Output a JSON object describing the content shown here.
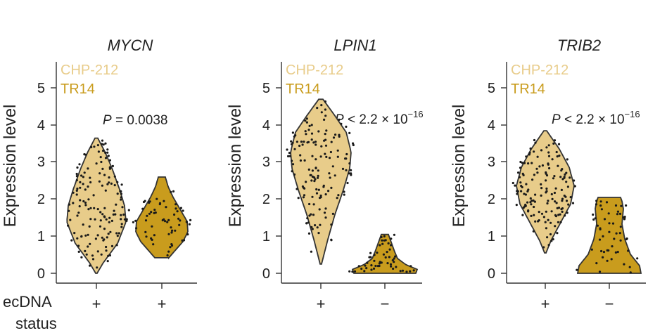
{
  "figure": {
    "x_axis_label_line1": "ecDNA",
    "x_axis_label_line2": "status"
  },
  "colors": {
    "CHP-212": "#e8cc8a",
    "TR14": "#c99c1d",
    "axis": "#333333",
    "dots": "#1a1a1a"
  },
  "chart_data": [
    {
      "type": "violin",
      "title": "MYCN",
      "ylabel": "Expression level",
      "ylim": [
        0,
        5.5
      ],
      "yticks": [
        0,
        1,
        2,
        3,
        4,
        5
      ],
      "legend": [
        "CHP-212",
        "TR14"
      ],
      "p_value": {
        "prefix": "P",
        "text": " = 0.0038",
        "exponent": ""
      },
      "groups": [
        {
          "name": "CHP-212",
          "ecdna_status": "+",
          "color": "#e8cc8a",
          "ymin": 0.0,
          "ymax": 3.65,
          "n_points": 150
        },
        {
          "name": "TR14",
          "ecdna_status": "+",
          "color": "#c99c1d",
          "ymin": 0.42,
          "ymax": 2.6,
          "n_points": 60
        }
      ]
    },
    {
      "type": "violin",
      "title": "LPIN1",
      "ylabel": "Expression level",
      "ylim": [
        0,
        5.5
      ],
      "yticks": [
        0,
        1,
        2,
        3,
        4,
        5
      ],
      "legend": [
        "CHP-212",
        "TR14"
      ],
      "p_value": {
        "prefix": "P",
        "text": " < 2.2 × 10",
        "exponent": "−16"
      },
      "groups": [
        {
          "name": "CHP-212",
          "ecdna_status": "+",
          "color": "#e8cc8a",
          "ymin": 0.25,
          "ymax": 4.7,
          "n_points": 150
        },
        {
          "name": "TR14",
          "ecdna_status": "−",
          "color": "#c99c1d",
          "ymin": 0.0,
          "ymax": 1.05,
          "n_points": 55
        }
      ]
    },
    {
      "type": "violin",
      "title": "TRIB2",
      "ylabel": "Expression level",
      "ylim": [
        0,
        5.5
      ],
      "yticks": [
        0,
        1,
        2,
        3,
        4,
        5
      ],
      "legend": [
        "CHP-212",
        "TR14"
      ],
      "p_value": {
        "prefix": "P",
        "text": " < 2.2 × 10",
        "exponent": "−16"
      },
      "groups": [
        {
          "name": "CHP-212",
          "ecdna_status": "+",
          "color": "#e8cc8a",
          "ymin": 0.55,
          "ymax": 3.85,
          "n_points": 150
        },
        {
          "name": "TR14",
          "ecdna_status": "−",
          "color": "#c99c1d",
          "ymin": 0.0,
          "ymax": 2.05,
          "n_points": 55
        }
      ]
    }
  ]
}
